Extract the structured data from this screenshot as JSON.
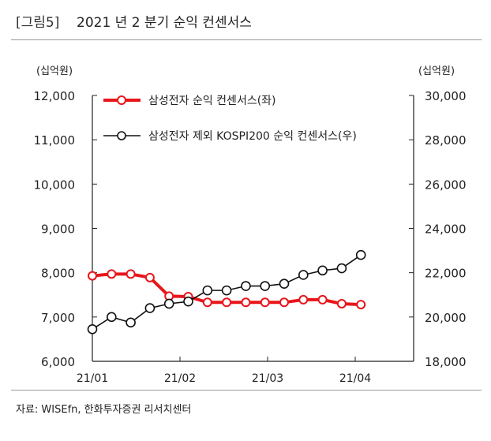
{
  "header": {
    "tag": "[그림5]",
    "title": "2021 년 2 분기 순익 컨센서스"
  },
  "source": "자료: WISEfn, 한화투자증권 리서치센터",
  "colors": {
    "red": "#e8151b",
    "black": "#111111"
  },
  "chart_data": {
    "type": "line",
    "left_unit": "(십억원)",
    "right_unit": "(십억원)",
    "left_ylim": [
      6000,
      12000
    ],
    "right_ylim": [
      18000,
      30000
    ],
    "left_ticks": [
      "12,000",
      "11,000",
      "10,000",
      "9,000",
      "8,000",
      "7,000",
      "6,000"
    ],
    "right_ticks": [
      "30,000",
      "28,000",
      "26,000",
      "24,000",
      "22,000",
      "20,000",
      "18,000"
    ],
    "x_ticks": [
      "21/01",
      "21/02",
      "21/03",
      "21/04"
    ],
    "legend_position": "top-left",
    "grid": false,
    "series": [
      {
        "name": "삼성전자 순익 컨센서스(좌)",
        "axis": "left",
        "color": "#e8151b",
        "values": [
          7930,
          7970,
          7970,
          7890,
          7470,
          7460,
          7330,
          7330,
          7330,
          7330,
          7330,
          7390,
          7390,
          7300,
          7280
        ]
      },
      {
        "name": "삼성전자 제외 KOSPI200 순익 컨센서스(우)",
        "axis": "right",
        "color": "#111111",
        "values": [
          19450,
          20000,
          19750,
          20400,
          20600,
          20700,
          21200,
          21200,
          21400,
          21400,
          21500,
          21900,
          22100,
          22200,
          22800
        ]
      }
    ]
  }
}
